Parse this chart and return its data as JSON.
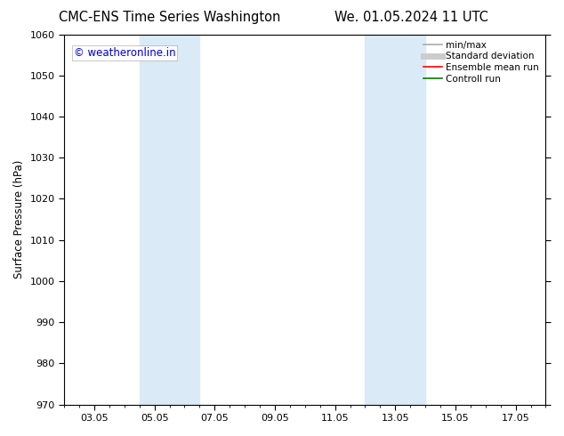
{
  "title_left": "CMC-ENS Time Series Washington",
  "title_right": "We. 01.05.2024 11 UTC",
  "ylabel": "Surface Pressure (hPa)",
  "ylim": [
    970,
    1060
  ],
  "yticks": [
    970,
    980,
    990,
    1000,
    1010,
    1020,
    1030,
    1040,
    1050,
    1060
  ],
  "xtick_labels": [
    "03.05",
    "05.05",
    "07.05",
    "09.05",
    "11.05",
    "13.05",
    "15.05",
    "17.05"
  ],
  "xtick_positions": [
    2,
    4,
    6,
    8,
    10,
    12,
    14,
    16
  ],
  "xlim": [
    1,
    17
  ],
  "shade_bands": [
    {
      "xmin": 3.5,
      "xmax": 5.5
    },
    {
      "xmin": 11.0,
      "xmax": 13.0
    }
  ],
  "shade_color": "#daeaf6",
  "watermark_text": "© weatheronline.in",
  "watermark_color": "#0000cc",
  "watermark_fontsize": 8.5,
  "legend_entries": [
    {
      "label": "min/max",
      "color": "#aaaaaa",
      "linewidth": 1.2,
      "linestyle": "-",
      "type": "line"
    },
    {
      "label": "Standard deviation",
      "color": "#cccccc",
      "linewidth": 5,
      "linestyle": "-",
      "type": "line"
    },
    {
      "label": "Ensemble mean run",
      "color": "#ff0000",
      "linewidth": 1.2,
      "linestyle": "-",
      "type": "line"
    },
    {
      "label": "Controll run",
      "color": "#008000",
      "linewidth": 1.2,
      "linestyle": "-",
      "type": "line"
    }
  ],
  "background_color": "#ffffff",
  "title_fontsize": 10.5,
  "axis_fontsize": 8.5,
  "tick_fontsize": 8,
  "legend_fontsize": 7.5
}
